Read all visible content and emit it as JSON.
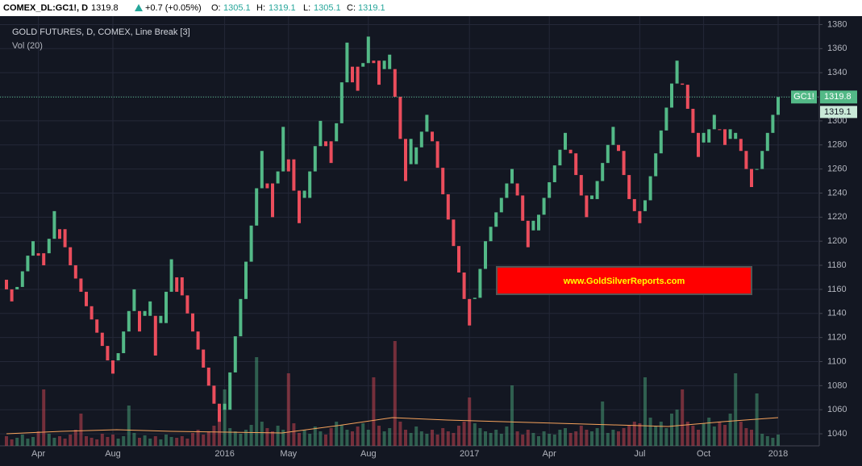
{
  "header": {
    "symbol": "COMEX_DL:GC1!, D",
    "last": "1319.8",
    "change": "+0.7 (+0.05%)",
    "o_label": "O:",
    "o": "1305.1",
    "h_label": "H:",
    "h": "1319.1",
    "l_label": "L:",
    "l": "1305.1",
    "c_label": "C:",
    "c": "1319.1"
  },
  "chart_data": {
    "type": "linebreak",
    "title": "GOLD FUTURES, D, COMEX, Line Break [3]",
    "volume_title": "Vol (20)",
    "watermark": "www.GoldSilverReports.com",
    "symbol_tag": "GC1!",
    "last_price": 1319.8,
    "last_label": "1319.8",
    "close_price": 1319.1,
    "close_label": "1319.1",
    "up_color": "#53b987",
    "down_color": "#eb4d5c",
    "first_open": 1168,
    "close": [
      1160,
      1150,
      1162,
      1175,
      1188,
      1200,
      1190,
      1180,
      1202,
      1225,
      1210,
      1195,
      1180,
      1169,
      1158,
      1146,
      1135,
      1124,
      1113,
      1101,
      1090,
      1107,
      1125,
      1142,
      1160,
      1125,
      1138,
      1150,
      1105,
      1132,
      1158,
      1185,
      1170,
      1155,
      1140,
      1125,
      1110,
      1095,
      1080,
      1065,
      1050,
      1060,
      1091,
      1121,
      1152,
      1183,
      1213,
      1244,
      1275,
      1248,
      1220,
      1258,
      1295,
      1268,
      1242,
      1215,
      1236,
      1258,
      1279,
      1300,
      1283,
      1265,
      1298,
      1332,
      1365,
      1345,
      1325,
      1348,
      1370,
      1350,
      1330,
      1343,
      1355,
      1320,
      1285,
      1250,
      1264,
      1278,
      1291,
      1305,
      1283,
      1261,
      1239,
      1218,
      1196,
      1174,
      1152,
      1130,
      1153,
      1177,
      1200,
      1212,
      1224,
      1236,
      1248,
      1260,
      1238,
      1217,
      1195,
      1209,
      1222,
      1236,
      1249,
      1263,
      1276,
      1290,
      1273,
      1255,
      1238,
      1220,
      1235,
      1250,
      1265,
      1280,
      1295,
      1275,
      1255,
      1235,
      1225,
      1215,
      1234,
      1254,
      1273,
      1292,
      1311,
      1331,
      1350,
      1330,
      1310,
      1290,
      1270,
      1282,
      1293,
      1305,
      1293,
      1280,
      1285,
      1290,
      1275,
      1260,
      1245,
      1260,
      1275,
      1290,
      1305,
      1319.8
    ],
    "volume": [
      12,
      8,
      10,
      14,
      9,
      11,
      18,
      70,
      15,
      10,
      12,
      9,
      14,
      20,
      40,
      12,
      10,
      8,
      15,
      11,
      14,
      9,
      12,
      50,
      16,
      10,
      13,
      9,
      12,
      8,
      14,
      11,
      10,
      12,
      9,
      16,
      20,
      14,
      18,
      25,
      30,
      70,
      22,
      18,
      15,
      20,
      26,
      110,
      30,
      22,
      18,
      25,
      20,
      90,
      28,
      16,
      20,
      15,
      24,
      18,
      14,
      22,
      30,
      26,
      20,
      18,
      24,
      28,
      20,
      85,
      25,
      18,
      22,
      130,
      30,
      20,
      16,
      24,
      18,
      15,
      20,
      14,
      22,
      18,
      16,
      25,
      30,
      60,
      28,
      22,
      18,
      16,
      20,
      15,
      24,
      75,
      18,
      14,
      20,
      16,
      12,
      18,
      15,
      14,
      20,
      22,
      16,
      18,
      25,
      20,
      18,
      22,
      55,
      16,
      20,
      18,
      22,
      26,
      30,
      28,
      85,
      35,
      25,
      30,
      22,
      40,
      45,
      70,
      30,
      25,
      20,
      28,
      35,
      24,
      30,
      26,
      40,
      90,
      30,
      22,
      20,
      65,
      15,
      12,
      10,
      14
    ],
    "volume_ma": [
      15,
      18,
      20,
      18,
      17,
      16,
      25,
      35,
      32,
      30,
      28,
      26,
      24,
      30,
      35
    ],
    "vlim": [
      0,
      150
    ],
    "ylim": [
      1030,
      1387
    ],
    "yticks": [
      1040,
      1060,
      1080,
      1100,
      1120,
      1140,
      1160,
      1180,
      1200,
      1220,
      1240,
      1260,
      1280,
      1300,
      1320,
      1340,
      1360,
      1380
    ],
    "xlim": [
      0,
      145
    ],
    "xticks": [
      {
        "value": 6,
        "label": "Apr"
      },
      {
        "value": 20,
        "label": "Aug"
      },
      {
        "value": 41,
        "label": "2016"
      },
      {
        "value": 53,
        "label": "May"
      },
      {
        "value": 68,
        "label": "Aug"
      },
      {
        "value": 87,
        "label": "2017"
      },
      {
        "value": 102,
        "label": "Apr"
      },
      {
        "value": 119,
        "label": "Jul"
      },
      {
        "value": 131,
        "label": "Oct"
      },
      {
        "value": 145,
        "label": "2018"
      }
    ],
    "grid": true
  }
}
